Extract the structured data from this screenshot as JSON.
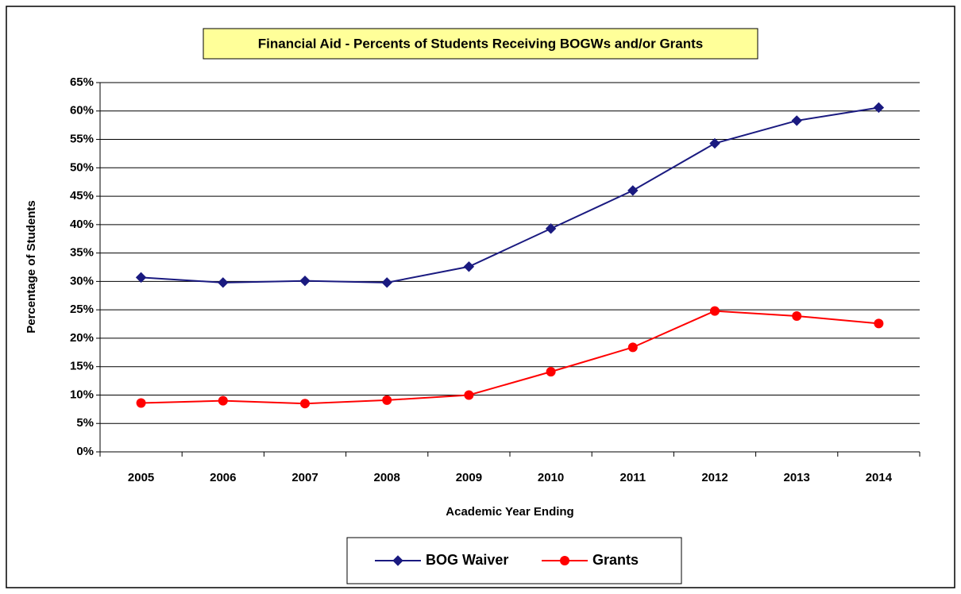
{
  "chart_data": {
    "type": "line",
    "title": "Financial Aid - Percents of Students Receiving BOGWs and/or Grants",
    "x_label": "Academic Year Ending",
    "y_label": "Percentage of Students",
    "categories": [
      "2005",
      "2006",
      "2007",
      "2008",
      "2009",
      "2010",
      "2011",
      "2012",
      "2013",
      "2014"
    ],
    "series": [
      {
        "name": "BOG Waiver",
        "color": "#1a1a80",
        "marker": "diamond",
        "values": [
          30.7,
          29.8,
          30.1,
          29.8,
          32.6,
          39.3,
          46.0,
          54.3,
          58.3,
          60.6
        ]
      },
      {
        "name": "Grants",
        "color": "#ff0000",
        "marker": "circle",
        "values": [
          8.6,
          9.0,
          8.5,
          9.1,
          10.0,
          14.1,
          18.4,
          24.8,
          23.9,
          22.6
        ]
      }
    ],
    "ylim": [
      0,
      65
    ],
    "yticks": [
      {
        "value": 0,
        "label": "0%"
      },
      {
        "value": 5,
        "label": "5%"
      },
      {
        "value": 10,
        "label": "10%"
      },
      {
        "value": 15,
        "label": "15%"
      },
      {
        "value": 20,
        "label": "20%"
      },
      {
        "value": 25,
        "label": "25%"
      },
      {
        "value": 30,
        "label": "30%"
      },
      {
        "value": 35,
        "label": "35%"
      },
      {
        "value": 40,
        "label": "40%"
      },
      {
        "value": 45,
        "label": "45%"
      },
      {
        "value": 50,
        "label": "50%"
      },
      {
        "value": 55,
        "label": "55%"
      },
      {
        "value": 60,
        "label": "60%"
      },
      {
        "value": 65,
        "label": "65%"
      }
    ],
    "grid": true,
    "legend": "bottom"
  }
}
